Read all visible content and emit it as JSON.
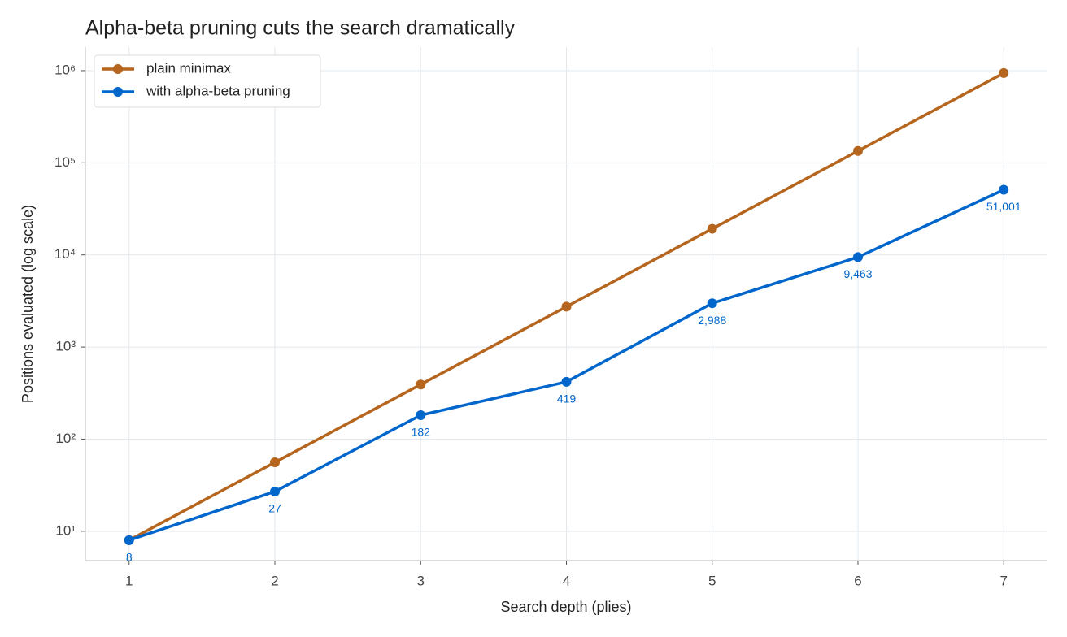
{
  "chart_data": {
    "type": "line",
    "title": "Alpha-beta pruning cuts the search dramatically",
    "x_label": "Search depth (plies)",
    "y_label": "Positions evaluated (log scale)",
    "x": [
      1,
      2,
      3,
      4,
      5,
      6,
      7
    ],
    "series": [
      {
        "name": "plain minimax",
        "color": "#b5651d",
        "values": [
          8,
          56,
          392,
          2744,
          19208,
          134456,
          941192
        ]
      },
      {
        "name": "with alpha-beta pruning",
        "color": "#0066cc",
        "values": [
          8,
          27,
          182,
          419,
          2988,
          9463,
          51001
        ],
        "value_labels": [
          "8",
          "27",
          "182",
          "419",
          "2,988",
          "9,463",
          "51,001"
        ]
      }
    ],
    "xlim": [
      0.7,
      7.3
    ],
    "xticks": [
      1,
      2,
      3,
      4,
      5,
      6,
      7
    ],
    "ylim": [
      4.8,
      1800000
    ],
    "yticks": [
      {
        "value": 10,
        "label": "10¹"
      },
      {
        "value": 100,
        "label": "10²"
      },
      {
        "value": 1000,
        "label": "10³"
      },
      {
        "value": 10000,
        "label": "10⁴"
      },
      {
        "value": 100000,
        "label": "10⁵"
      },
      {
        "value": 1000000,
        "label": "10⁶"
      }
    ],
    "log_y": true,
    "grid": true,
    "legend": "upper left"
  }
}
